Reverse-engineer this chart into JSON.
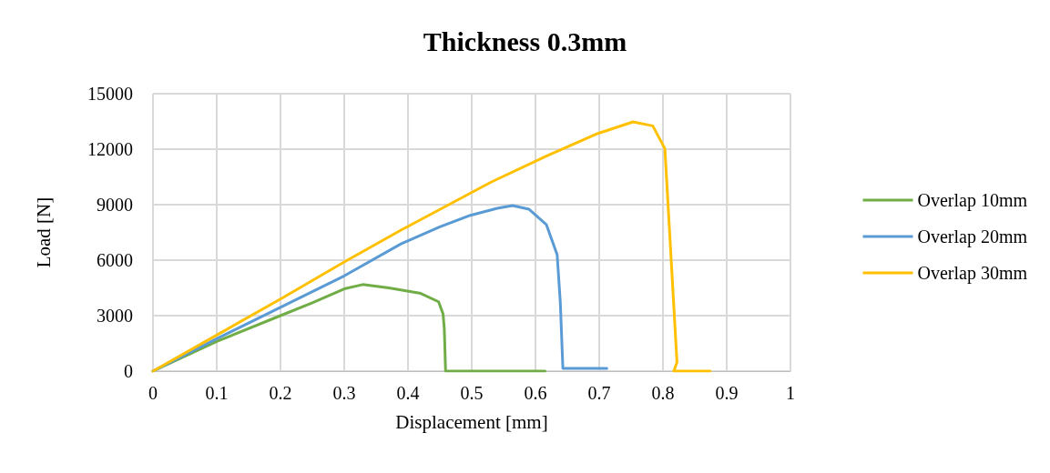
{
  "chart_data": {
    "type": "line",
    "title": "Thickness 0.3mm",
    "xlabel": "Displacement [mm]",
    "ylabel": "Load [N]",
    "xlim": [
      0,
      1
    ],
    "xticks": [
      0,
      0.1,
      0.2,
      0.3,
      0.4,
      0.5,
      0.6,
      0.7,
      0.8,
      0.9,
      1
    ],
    "ylim": [
      0,
      15000
    ],
    "yticks": [
      0,
      3000,
      6000,
      9000,
      12000,
      15000
    ],
    "grid": true,
    "legend": "right",
    "marker": "none",
    "line_style": "solid",
    "series": [
      {
        "name": "Overlap 10mm",
        "color": "#70ad47",
        "x": [
          0,
          0.1,
          0.2,
          0.25,
          0.3,
          0.329,
          0.37,
          0.42,
          0.448,
          0.455,
          0.457,
          0.459,
          0.615
        ],
        "values": [
          0,
          1600,
          3000,
          3700,
          4450,
          4680,
          4500,
          4200,
          3750,
          3100,
          2280,
          0,
          0
        ]
      },
      {
        "name": "Overlap 20mm",
        "color": "#5b9bd5",
        "x": [
          0,
          0.1,
          0.2,
          0.3,
          0.389,
          0.45,
          0.498,
          0.54,
          0.564,
          0.59,
          0.617,
          0.634,
          0.639,
          0.643,
          0.66,
          0.712
        ],
        "values": [
          0,
          1750,
          3450,
          5150,
          6880,
          7800,
          8425,
          8800,
          8950,
          8750,
          7930,
          6300,
          3690,
          150,
          150,
          150
        ]
      },
      {
        "name": "Overlap 30mm",
        "color": "#ffc000",
        "x": [
          0,
          0.1,
          0.2,
          0.3,
          0.389,
          0.531,
          0.617,
          0.698,
          0.753,
          0.784,
          0.803,
          0.822,
          0.817,
          0.874
        ],
        "values": [
          0,
          1950,
          3900,
          5900,
          7620,
          10230,
          11620,
          12850,
          13475,
          13260,
          12030,
          475,
          0,
          0
        ]
      }
    ]
  }
}
